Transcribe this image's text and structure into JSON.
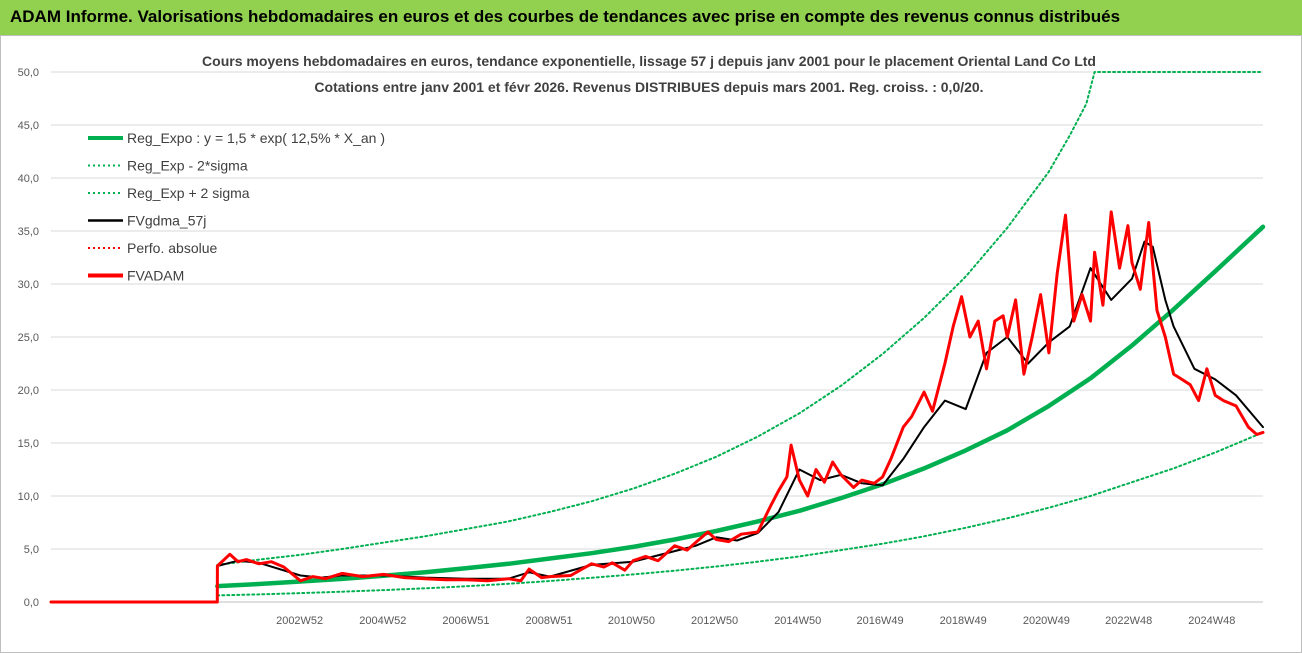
{
  "header": {
    "title": "ADAM Informe. Valorisations hebdomadaires en euros et des courbes de tendances avec prise en compte des revenus connus distribués"
  },
  "colors": {
    "banner": "#92d050",
    "trend": "#00b050",
    "red": "#ff0000",
    "black": "#000000",
    "grid": "#d9d9d9"
  },
  "chart_data": {
    "type": "line",
    "title": "Cours moyens hebdomadaires en euros, tendance exponentielle, lissage 57 j depuis janv 2001 pour le placement Oriental Land Co Ltd",
    "subtitle": "Cotations entre janv 2001 et févr 2026. Revenus DISTRIBUES depuis mars 2001. Reg. croiss. : 0,0/20.",
    "ylim": [
      0,
      50
    ],
    "yticks": [
      "0,0",
      "5,0",
      "10,0",
      "15,0",
      "20,0",
      "25,0",
      "30,0",
      "35,0",
      "40,0",
      "45,0",
      "50,0"
    ],
    "xlim": [
      1997.0,
      2026.15
    ],
    "xticks": [
      {
        "label": "2002W52",
        "x": 2002.98
      },
      {
        "label": "2004W52",
        "x": 2004.98
      },
      {
        "label": "2006W51",
        "x": 2006.98
      },
      {
        "label": "2008W51",
        "x": 2008.98
      },
      {
        "label": "2010W50",
        "x": 2010.96
      },
      {
        "label": "2012W50",
        "x": 2012.96
      },
      {
        "label": "2014W50",
        "x": 2014.96
      },
      {
        "label": "2016W49",
        "x": 2016.94
      },
      {
        "label": "2018W49",
        "x": 2018.94
      },
      {
        "label": "2020W49",
        "x": 2020.94
      },
      {
        "label": "2022W48",
        "x": 2022.92
      },
      {
        "label": "2024W48",
        "x": 2024.92
      }
    ],
    "grid": "horizontal",
    "legend_position": "top-left",
    "legend": [
      {
        "name": "Reg_Expo : y = 1,5 * exp( 12,5% *  X_an )",
        "color": "#00b050",
        "style": "thick"
      },
      {
        "name": "Reg_Exp - 2*sigma",
        "color": "#00b050",
        "style": "dotted"
      },
      {
        "name": "Reg_Exp + 2 sigma",
        "color": "#00b050",
        "style": "dotted"
      },
      {
        "name": "FVgdma_57j",
        "color": "#000000",
        "style": "solid"
      },
      {
        "name": "Perfo. absolue",
        "color": "#ff0000",
        "style": "dotted"
      },
      {
        "name": "FVADAM",
        "color": "#ff0000",
        "style": "thick"
      }
    ],
    "series": [
      {
        "name": "Reg_Expo : y = 1,5 * exp( 12,5% *  X_an )",
        "color": "#00b050",
        "width": 4.5,
        "dash": "",
        "x": [
          2001.0,
          2002.0,
          2003.0,
          2004.0,
          2005.0,
          2006.0,
          2007.0,
          2008.0,
          2009.0,
          2010.0,
          2011.0,
          2012.0,
          2013.0,
          2014.0,
          2015.0,
          2016.0,
          2017.0,
          2018.0,
          2019.0,
          2020.0,
          2021.0,
          2022.0,
          2023.0,
          2024.0,
          2025.0,
          2026.15
        ],
        "y": [
          1.5,
          1.7,
          1.93,
          2.18,
          2.47,
          2.8,
          3.2,
          3.6,
          4.1,
          4.6,
          5.2,
          5.9,
          6.7,
          7.6,
          8.6,
          9.8,
          11.1,
          12.6,
          14.3,
          16.2,
          18.5,
          21.1,
          24.2,
          27.6,
          31.2,
          35.4
        ]
      },
      {
        "name": "Reg_Exp - 2*sigma",
        "color": "#00b050",
        "width": 2,
        "dash": "2 3",
        "x": [
          2001.0,
          2002.0,
          2003.0,
          2004.0,
          2005.0,
          2006.0,
          2007.0,
          2008.0,
          2009.0,
          2010.0,
          2011.0,
          2012.0,
          2013.0,
          2014.0,
          2015.0,
          2016.0,
          2017.0,
          2018.0,
          2019.0,
          2020.0,
          2021.0,
          2022.0,
          2023.0,
          2024.0,
          2025.0,
          2026.15
        ],
        "y": [
          0.62,
          0.72,
          0.84,
          0.97,
          1.12,
          1.29,
          1.49,
          1.72,
          1.98,
          2.28,
          2.6,
          2.95,
          3.35,
          3.8,
          4.3,
          4.9,
          5.5,
          6.2,
          7.0,
          7.9,
          8.9,
          10.0,
          11.3,
          12.6,
          14.1,
          16.0
        ]
      },
      {
        "name": "Reg_Exp + 2 sigma",
        "color": "#00b050",
        "width": 2,
        "dash": "2 3",
        "x": [
          2001.0,
          2002.0,
          2003.0,
          2004.0,
          2005.0,
          2006.0,
          2007.0,
          2008.0,
          2009.0,
          2010.0,
          2011.0,
          2012.0,
          2013.0,
          2014.0,
          2015.0,
          2016.0,
          2017.0,
          2018.0,
          2019.0,
          2020.0,
          2021.0,
          2021.5,
          2021.9,
          2022.1,
          2026.15
        ],
        "y": [
          3.5,
          4.0,
          4.45,
          5.0,
          5.6,
          6.2,
          6.9,
          7.6,
          8.5,
          9.5,
          10.7,
          12.1,
          13.7,
          15.6,
          17.8,
          20.4,
          23.4,
          26.8,
          30.7,
          35.3,
          40.6,
          44.0,
          47.0,
          50.0,
          50.0
        ]
      },
      {
        "name": "FVgdma_57j",
        "color": "#000000",
        "width": 2,
        "dash": "",
        "x": [
          1997.0,
          2001.0,
          2001.001,
          2001.5,
          2002.0,
          2003.0,
          2003.5,
          2004.0,
          2005.0,
          2006.0,
          2007.0,
          2008.0,
          2008.5,
          2009.0,
          2010.0,
          2011.0,
          2012.0,
          2012.5,
          2013.0,
          2013.5,
          2014.0,
          2014.5,
          2015.0,
          2015.5,
          2016.0,
          2016.5,
          2017.0,
          2017.5,
          2018.0,
          2018.5,
          2019.0,
          2019.5,
          2020.0,
          2020.5,
          2021.0,
          2021.5,
          2022.0,
          2022.5,
          2023.0,
          2023.3,
          2023.5,
          2023.8,
          2024.0,
          2024.5,
          2025.0,
          2025.5,
          2026.15
        ],
        "y": [
          0,
          0,
          3.4,
          3.9,
          3.7,
          2.5,
          2.3,
          2.5,
          2.5,
          2.3,
          2.2,
          2.2,
          2.8,
          2.4,
          3.5,
          3.8,
          4.8,
          5.3,
          6.1,
          5.8,
          6.5,
          8.5,
          12.5,
          11.5,
          12.0,
          11.2,
          11.0,
          13.5,
          16.5,
          19.0,
          18.2,
          23.5,
          25.0,
          22.5,
          24.5,
          26.0,
          31.5,
          28.5,
          30.5,
          34.0,
          33.5,
          28.5,
          26.0,
          22.0,
          21.0,
          19.5,
          16.5
        ]
      },
      {
        "name": "Perfo. absolue",
        "color": "#ff0000",
        "width": 1.2,
        "dash": "1 2",
        "x": [
          1997.0,
          2001.0
        ],
        "y": [
          0,
          0
        ]
      },
      {
        "name": "FVADAM",
        "color": "#ff0000",
        "width": 3,
        "dash": "",
        "x": [
          1997.0,
          2001.0,
          2001.001,
          2001.3,
          2001.5,
          2001.7,
          2002.0,
          2002.3,
          2002.6,
          2003.0,
          2003.3,
          2003.6,
          2004.0,
          2004.5,
          2005.0,
          2005.5,
          2006.0,
          2006.5,
          2007.0,
          2007.5,
          2008.0,
          2008.3,
          2008.5,
          2008.8,
          2009.0,
          2009.5,
          2010.0,
          2010.3,
          2010.5,
          2010.8,
          2011.0,
          2011.3,
          2011.6,
          2012.0,
          2012.3,
          2012.5,
          2012.8,
          2013.0,
          2013.3,
          2013.6,
          2014.0,
          2014.3,
          2014.5,
          2014.7,
          2014.8,
          2015.0,
          2015.2,
          2015.4,
          2015.6,
          2015.8,
          2016.0,
          2016.3,
          2016.5,
          2016.8,
          2017.0,
          2017.2,
          2017.5,
          2017.7,
          2018.0,
          2018.2,
          2018.5,
          2018.7,
          2018.9,
          2019.1,
          2019.3,
          2019.5,
          2019.7,
          2019.9,
          2020.0,
          2020.2,
          2020.4,
          2020.6,
          2020.8,
          2021.0,
          2021.2,
          2021.4,
          2021.6,
          2021.8,
          2022.0,
          2022.1,
          2022.3,
          2022.5,
          2022.7,
          2022.9,
          2023.0,
          2023.2,
          2023.4,
          2023.6,
          2023.8,
          2024.0,
          2024.2,
          2024.4,
          2024.6,
          2024.8,
          2025.0,
          2025.2,
          2025.5,
          2025.8,
          2026.0,
          2026.15
        ],
        "y": [
          0,
          0,
          3.4,
          4.5,
          3.8,
          4.0,
          3.6,
          3.8,
          3.3,
          2.0,
          2.4,
          2.2,
          2.7,
          2.4,
          2.6,
          2.3,
          2.2,
          2.1,
          2.1,
          2.0,
          2.2,
          2.0,
          3.1,
          2.3,
          2.4,
          2.5,
          3.6,
          3.3,
          3.7,
          3.0,
          3.9,
          4.3,
          3.9,
          5.3,
          4.9,
          5.6,
          6.6,
          5.9,
          5.7,
          6.4,
          6.6,
          9.0,
          10.5,
          11.8,
          14.8,
          11.5,
          10.0,
          12.5,
          11.3,
          13.2,
          12.0,
          10.8,
          11.5,
          11.2,
          11.8,
          13.5,
          16.5,
          17.5,
          19.8,
          18.0,
          22.5,
          26.0,
          28.8,
          25.0,
          26.5,
          22.0,
          26.5,
          27.0,
          25.0,
          28.5,
          21.5,
          25.0,
          29.0,
          23.5,
          31.0,
          36.5,
          26.5,
          29.0,
          26.5,
          33.0,
          28.0,
          36.8,
          31.5,
          35.5,
          32.0,
          29.5,
          35.8,
          27.5,
          25.0,
          21.5,
          21.0,
          20.5,
          19.0,
          22.0,
          19.5,
          19.0,
          18.5,
          16.5,
          15.8,
          16.0
        ]
      }
    ]
  }
}
